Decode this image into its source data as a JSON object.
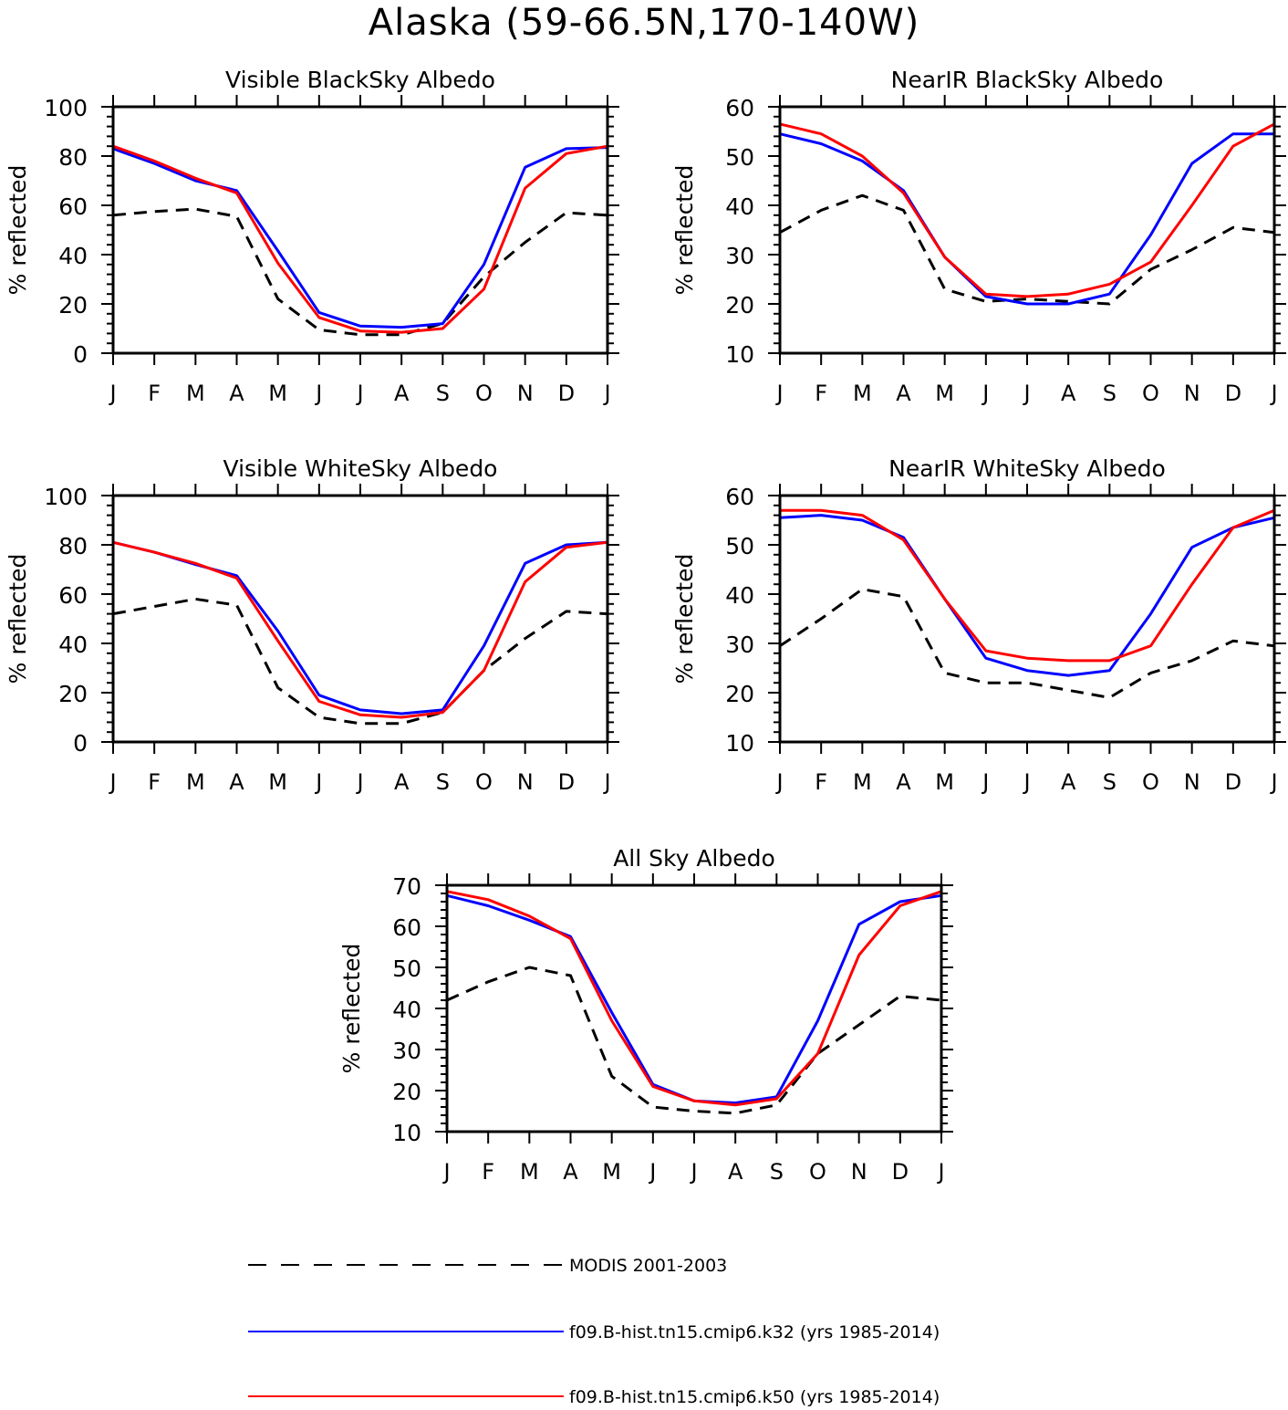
{
  "title": "Alaska (59-66.5N,170-140W)",
  "months": [
    "J",
    "F",
    "M",
    "A",
    "M",
    "J",
    "J",
    "A",
    "S",
    "O",
    "N",
    "D",
    "J"
  ],
  "colors": {
    "MODIS": "#000000",
    "k32": "#0000ff",
    "k50": "#ff0000"
  },
  "legend": [
    {
      "key": "MODIS",
      "label": "MODIS 2001-2003",
      "style": "dashed"
    },
    {
      "key": "k32",
      "label": "f09.B-hist.tn15.cmip6.k32 (yrs 1985-2014)",
      "style": "solid"
    },
    {
      "key": "k50",
      "label": "f09.B-hist.tn15.cmip6.k50 (yrs 1985-2014)",
      "style": "solid"
    }
  ],
  "chart_data": [
    {
      "type": "line",
      "title": "Visible BlackSky Albedo",
      "ylabel": "% reflected",
      "ylim": [
        0,
        100
      ],
      "yticks": [
        0,
        20,
        40,
        60,
        80,
        100
      ],
      "categories": [
        "J",
        "F",
        "M",
        "A",
        "M",
        "J",
        "J",
        "A",
        "S",
        "O",
        "N",
        "D",
        "J"
      ],
      "series": [
        {
          "name": "MODIS 2001-2003",
          "key": "MODIS",
          "values": [
            56,
            57.5,
            58.5,
            55.5,
            22,
            9.5,
            7.5,
            7.5,
            12,
            31,
            45,
            57,
            56
          ]
        },
        {
          "name": "f09.B-hist.tn15.cmip6.k32 (yrs 1985-2014)",
          "key": "k32",
          "values": [
            83,
            77,
            70,
            66,
            41.5,
            16.5,
            11,
            10.5,
            12,
            36,
            75.5,
            83,
            83.5
          ]
        },
        {
          "name": "f09.B-hist.tn15.cmip6.k50 (yrs 1985-2014)",
          "key": "k50",
          "values": [
            84,
            78,
            71,
            65,
            36.5,
            14.5,
            9,
            8.5,
            10,
            26,
            67,
            81,
            84
          ]
        }
      ]
    },
    {
      "type": "line",
      "title": "NearIR BlackSky Albedo",
      "ylabel": "% reflected",
      "ylim": [
        10,
        60
      ],
      "yticks": [
        10,
        20,
        30,
        40,
        50,
        60
      ],
      "categories": [
        "J",
        "F",
        "M",
        "A",
        "M",
        "J",
        "J",
        "A",
        "S",
        "O",
        "N",
        "D",
        "J"
      ],
      "series": [
        {
          "name": "MODIS 2001-2003",
          "key": "MODIS",
          "values": [
            34.5,
            39,
            42,
            39,
            23,
            20.5,
            21,
            20.5,
            20,
            27,
            31,
            35.5,
            34.5
          ]
        },
        {
          "name": "f09.B-hist.tn15.cmip6.k32 (yrs 1985-2014)",
          "key": "k32",
          "values": [
            54.5,
            52.5,
            49,
            43,
            29.5,
            21.5,
            20,
            20,
            22,
            34,
            48.5,
            54.5,
            54.5
          ]
        },
        {
          "name": "f09.B-hist.tn15.cmip6.k50 (yrs 1985-2014)",
          "key": "k50",
          "values": [
            56.5,
            54.5,
            50,
            42.5,
            29.5,
            22,
            21.5,
            22,
            24,
            28.5,
            40,
            52,
            56.5
          ]
        }
      ]
    },
    {
      "type": "line",
      "title": "Visible WhiteSky Albedo",
      "ylabel": "% reflected",
      "ylim": [
        0,
        100
      ],
      "yticks": [
        0,
        20,
        40,
        60,
        80,
        100
      ],
      "categories": [
        "J",
        "F",
        "M",
        "A",
        "M",
        "J",
        "J",
        "A",
        "S",
        "O",
        "N",
        "D",
        "J"
      ],
      "series": [
        {
          "name": "MODIS 2001-2003",
          "key": "MODIS",
          "values": [
            52,
            55,
            58,
            55.5,
            22,
            10,
            7.5,
            7.5,
            12,
            29,
            42,
            53,
            52
          ]
        },
        {
          "name": "f09.B-hist.tn15.cmip6.k32 (yrs 1985-2014)",
          "key": "k32",
          "values": [
            81,
            77,
            72,
            67.5,
            45,
            19,
            13,
            11.5,
            13,
            39,
            72.5,
            80,
            81
          ]
        },
        {
          "name": "f09.B-hist.tn15.cmip6.k50 (yrs 1985-2014)",
          "key": "k50",
          "values": [
            81,
            77,
            72.5,
            66.5,
            41,
            16.5,
            11,
            10,
            12,
            29,
            65,
            79,
            81
          ]
        }
      ]
    },
    {
      "type": "line",
      "title": "NearIR WhiteSky Albedo",
      "ylabel": "% reflected",
      "ylim": [
        10,
        60
      ],
      "yticks": [
        10,
        20,
        30,
        40,
        50,
        60
      ],
      "categories": [
        "J",
        "F",
        "M",
        "A",
        "M",
        "J",
        "J",
        "A",
        "S",
        "O",
        "N",
        "D",
        "J"
      ],
      "series": [
        {
          "name": "MODIS 2001-2003",
          "key": "MODIS",
          "values": [
            29.5,
            35,
            41,
            39.5,
            24,
            22,
            22,
            20.5,
            19,
            24,
            26.5,
            30.5,
            29.5
          ]
        },
        {
          "name": "f09.B-hist.tn15.cmip6.k32 (yrs 1985-2014)",
          "key": "k32",
          "values": [
            55.5,
            56,
            55,
            51.5,
            39,
            27,
            24.5,
            23.5,
            24.5,
            36,
            49.5,
            53.5,
            55.5
          ]
        },
        {
          "name": "f09.B-hist.tn15.cmip6.k50 (yrs 1985-2014)",
          "key": "k50",
          "values": [
            57,
            57,
            56,
            51,
            39,
            28.5,
            27,
            26.5,
            26.5,
            29.5,
            42,
            53.5,
            57
          ]
        }
      ]
    },
    {
      "type": "line",
      "title": "All Sky Albedo",
      "ylabel": "% reflected",
      "ylim": [
        10,
        70
      ],
      "yticks": [
        10,
        20,
        30,
        40,
        50,
        60,
        70
      ],
      "categories": [
        "J",
        "F",
        "M",
        "A",
        "M",
        "J",
        "J",
        "A",
        "S",
        "O",
        "N",
        "D",
        "J"
      ],
      "series": [
        {
          "name": "MODIS 2001-2003",
          "key": "MODIS",
          "values": [
            42,
            46.5,
            50,
            48,
            23.5,
            16,
            15,
            14.5,
            16.5,
            29,
            36,
            43,
            42
          ]
        },
        {
          "name": "f09.B-hist.tn15.cmip6.k32 (yrs 1985-2014)",
          "key": "k32",
          "values": [
            67.5,
            65,
            61.5,
            57.5,
            39,
            21.5,
            17.5,
            17,
            18.5,
            37,
            60.5,
            66,
            67.5
          ]
        },
        {
          "name": "f09.B-hist.tn15.cmip6.k50 (yrs 1985-2014)",
          "key": "k50",
          "values": [
            68.5,
            66.5,
            62.5,
            57,
            37,
            21,
            17.5,
            16.5,
            18,
            29,
            53,
            65,
            68.5
          ]
        }
      ]
    }
  ]
}
